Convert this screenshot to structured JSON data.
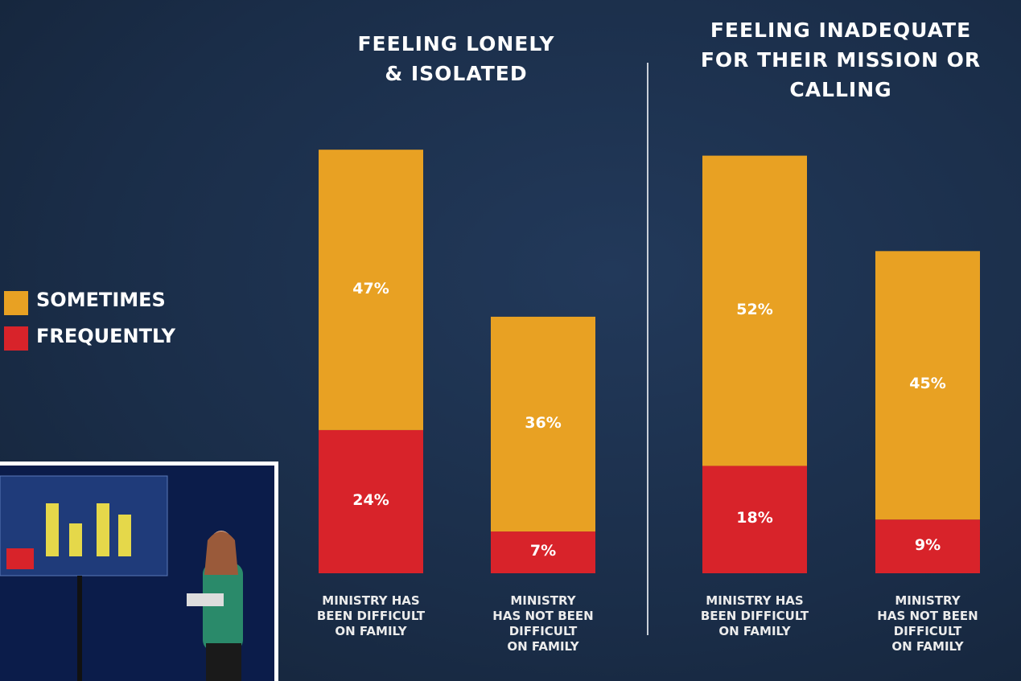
{
  "chart_data": [
    {
      "type": "stacked_bar",
      "title": "FEELING LONELY\n& ISOLATED",
      "legend": "left",
      "categories": [
        "MINISTRY HAS\nBEEN DIFFICULT\nON FAMILY",
        "MINISTRY\nHAS NOT BEEN\nDIFFICULT\nON FAMILY"
      ],
      "series": [
        {
          "name": "FREQUENTLY",
          "color": "#d8232a",
          "values": [
            24,
            7
          ],
          "value_labels": [
            "24%",
            "7%"
          ]
        },
        {
          "name": "SOMETIMES",
          "color": "#e8a123",
          "values": [
            47,
            36
          ],
          "value_labels": [
            "47%",
            "36%"
          ]
        }
      ]
    },
    {
      "type": "stacked_bar",
      "title": "FEELING INADEQUATE\nFOR THEIR MISSION OR\nCALLING",
      "categories": [
        "MINISTRY HAS\nBEEN DIFFICULT\nON FAMILY",
        "MINISTRY\nHAS NOT BEEN\nDIFFICULT\nON FAMILY"
      ],
      "series": [
        {
          "color": "#d8232a",
          "values": [
            18,
            9
          ],
          "value_labels": [
            "18%",
            "9%"
          ]
        },
        {
          "color": "#e8a123",
          "values": [
            52,
            45
          ],
          "value_labels": [
            "52%",
            "45%"
          ]
        }
      ]
    }
  ]
}
